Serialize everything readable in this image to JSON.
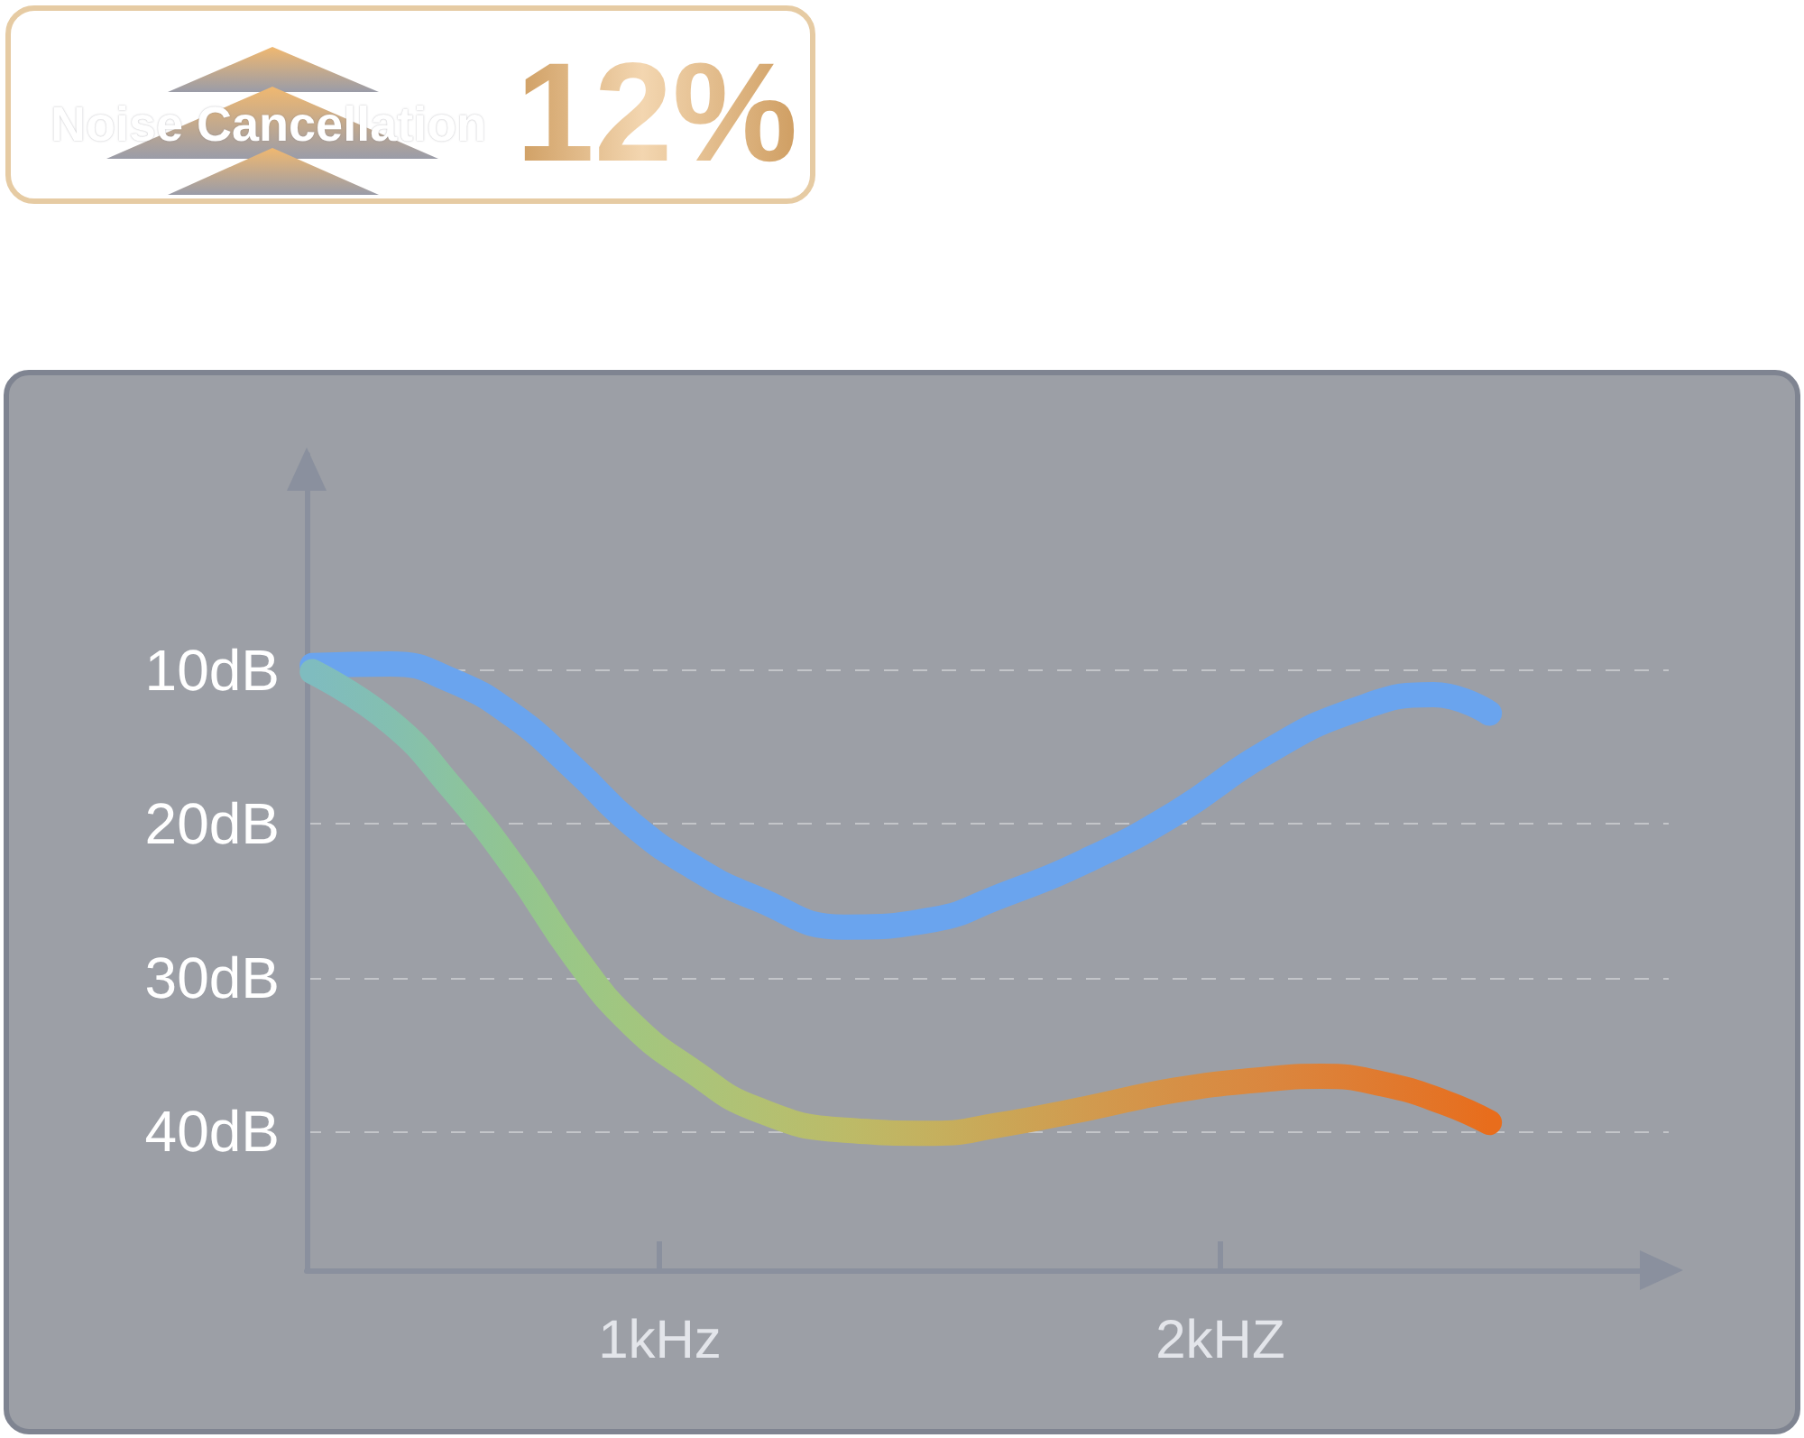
{
  "chart_data": {
    "type": "line",
    "title": "Noise Cancellation",
    "annotations": [
      "12%"
    ],
    "xlim": [
      0.37,
      2.8
    ],
    "xticks": [
      {
        "value": 1,
        "label": "1kHz"
      },
      {
        "value": 2,
        "label": "2kHZ"
      }
    ],
    "ylim": [
      49,
      -4
    ],
    "yticks": [
      {
        "value": 10,
        "label": "10dB"
      },
      {
        "value": 20,
        "label": "20dB"
      },
      {
        "value": 30,
        "label": "30dB"
      },
      {
        "value": 40,
        "label": "40dB"
      }
    ],
    "grid": "y",
    "marker": "none",
    "line_style": "solid",
    "series": [
      {
        "color": "#6aa4ee",
        "x": [
          0.38,
          0.52,
          0.63,
          0.74,
          0.85,
          0.95,
          1.06,
          1.17,
          1.33,
          1.49,
          1.6,
          1.76,
          1.92,
          2.08,
          2.24,
          2.38,
          2.48
        ],
        "values": [
          9.7,
          9.6,
          10.7,
          13,
          16.5,
          20,
          22.8,
          24.8,
          26.7,
          26.2,
          24.8,
          22.4,
          19.3,
          15.4,
          12.6,
          11.6,
          12.8
        ]
      },
      {
        "colors": [
          "#7fbcbf",
          "#84bfb0",
          "#8bc3a0",
          "#92c590",
          "#9bc786",
          "#a2c67f",
          "#aac47a",
          "#b2c173",
          "#bcbb68",
          "#c5b05e",
          "#caa757",
          "#d19b4f",
          "#d69046",
          "#da873f",
          "#dd8138",
          "#e07a2f",
          "#e47325",
          "#e86d1c"
        ],
        "x": [
          0.38,
          0.52,
          0.63,
          0.74,
          0.85,
          0.95,
          1.06,
          1.17,
          1.33,
          1.49,
          1.6,
          1.76,
          1.92,
          2.08,
          2.18,
          2.29,
          2.4,
          2.48
        ],
        "values": [
          10.1,
          13.4,
          17.7,
          22.8,
          28.7,
          33,
          36.1,
          38.5,
          39.9,
          40.1,
          39.6,
          38.5,
          37.3,
          36.6,
          36.4,
          36.9,
          38.1,
          39.4
        ]
      }
    ]
  }
}
